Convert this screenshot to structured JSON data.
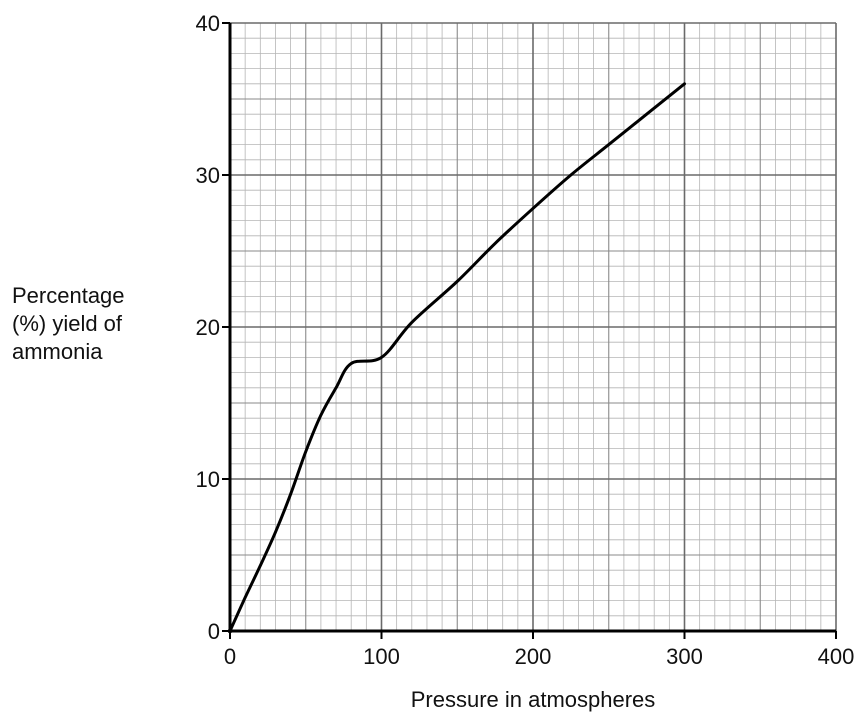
{
  "chart_data": {
    "type": "line",
    "title": "",
    "xlabel": "Pressure in atmospheres",
    "ylabel_lines": [
      "Percentage",
      "(%) yield of",
      "ammonia"
    ],
    "xlim": [
      0,
      400
    ],
    "ylim": [
      0,
      40
    ],
    "x_ticks": [
      0,
      100,
      200,
      300,
      400
    ],
    "y_ticks": [
      0,
      10,
      20,
      30,
      40
    ],
    "x_tick_labels": [
      "0",
      "100",
      "200",
      "300",
      "400"
    ],
    "y_tick_labels": [
      "0",
      "10",
      "20",
      "30",
      "40"
    ],
    "grid": true,
    "grid_style": "graph paper (major every 50 units on x, 5 units on y; minor every 10 on x, 1 on y)",
    "series": [
      {
        "color": "#000000",
        "x": [
          0,
          10,
          20,
          30,
          40,
          50,
          60,
          70,
          80,
          100,
          120,
          150,
          175,
          200,
          225,
          250,
          275,
          300
        ],
        "y": [
          0,
          2.2,
          4.3,
          6.5,
          9.0,
          11.8,
          14.2,
          16.0,
          17.6,
          18.0,
          20.3,
          23.0,
          25.5,
          27.8,
          30.0,
          32.0,
          34.0,
          36.0
        ]
      }
    ]
  }
}
